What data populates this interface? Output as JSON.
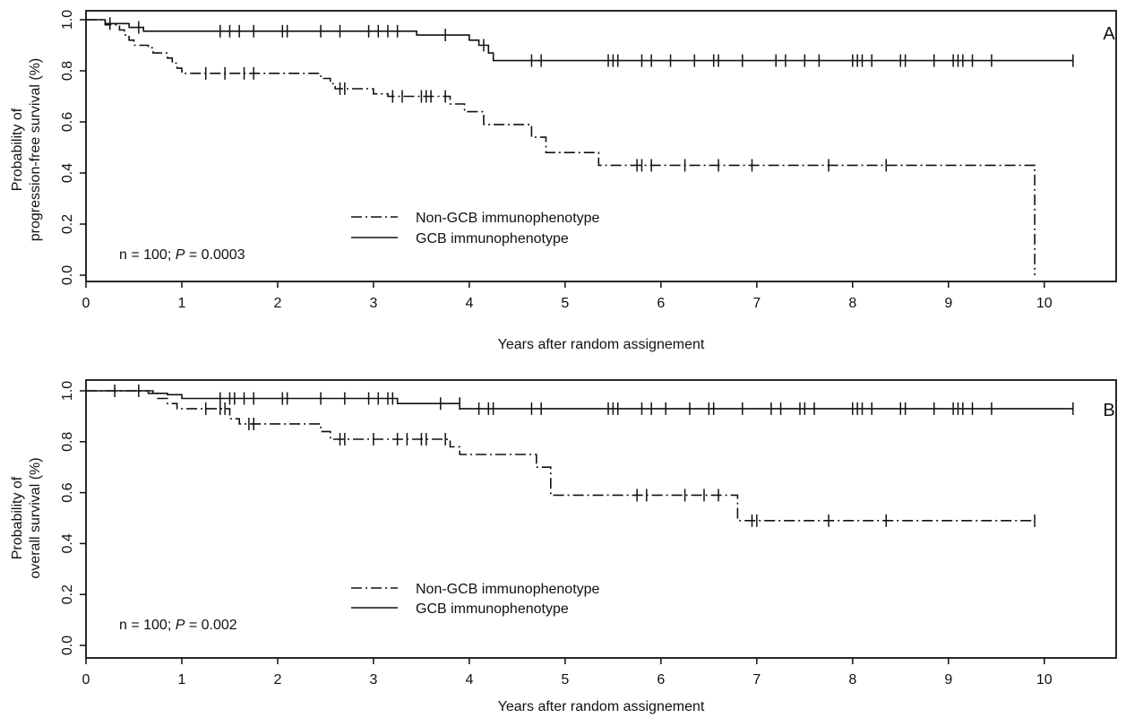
{
  "chart_data": [
    {
      "type": "line",
      "step": true,
      "panel_label": "A",
      "ylabel_line1": "Probability of",
      "ylabel_line2": "progression-free survival (%)",
      "xlabel": "Years after random assignement",
      "xlim": [
        0,
        10.75
      ],
      "ylim": [
        0,
        1.0
      ],
      "xticks": [
        "0",
        "1",
        "2",
        "3",
        "4",
        "5",
        "6",
        "7",
        "8",
        "9",
        "10"
      ],
      "yticks": [
        "0.0",
        "0.2",
        "0.4",
        "0.6",
        "0.8",
        "1.0"
      ],
      "annotation_text": "n = 100; ",
      "annotation_p_label": "P",
      "annotation_p_value": " = 0.0003",
      "legend": [
        {
          "label": "Non-GCB immunophenotype",
          "style": "dashdot"
        },
        {
          "label": "GCB immunophenotype",
          "style": "solid"
        }
      ],
      "series": [
        {
          "name": "Non-GCB immunophenotype",
          "style": "dashdot",
          "steps": [
            [
              0,
              1.0
            ],
            [
              0.2,
              0.98
            ],
            [
              0.35,
              0.96
            ],
            [
              0.4,
              0.94
            ],
            [
              0.45,
              0.92
            ],
            [
              0.5,
              0.9
            ],
            [
              0.65,
              0.89
            ],
            [
              0.7,
              0.87
            ],
            [
              0.85,
              0.85
            ],
            [
              0.9,
              0.83
            ],
            [
              0.95,
              0.81
            ],
            [
              1.0,
              0.79
            ],
            [
              2.45,
              0.77
            ],
            [
              2.55,
              0.75
            ],
            [
              2.6,
              0.73
            ],
            [
              3.0,
              0.71
            ],
            [
              3.15,
              0.7
            ],
            [
              3.8,
              0.67
            ],
            [
              3.95,
              0.64
            ],
            [
              4.15,
              0.59
            ],
            [
              4.65,
              0.54
            ],
            [
              4.8,
              0.48
            ],
            [
              5.35,
              0.43
            ],
            [
              9.9,
              0.0
            ]
          ],
          "end_x": 9.9,
          "censored": [
            [
              1.25,
              0.79
            ],
            [
              1.45,
              0.79
            ],
            [
              1.65,
              0.79
            ],
            [
              1.75,
              0.79
            ],
            [
              2.65,
              0.73
            ],
            [
              2.7,
              0.73
            ],
            [
              3.2,
              0.7
            ],
            [
              3.3,
              0.7
            ],
            [
              3.5,
              0.7
            ],
            [
              3.55,
              0.7
            ],
            [
              3.6,
              0.7
            ],
            [
              3.75,
              0.7
            ],
            [
              5.75,
              0.43
            ],
            [
              5.8,
              0.43
            ],
            [
              5.9,
              0.43
            ],
            [
              6.25,
              0.43
            ],
            [
              6.6,
              0.43
            ],
            [
              6.95,
              0.43
            ],
            [
              7.75,
              0.43
            ],
            [
              8.35,
              0.43
            ]
          ]
        },
        {
          "name": "GCB immunophenotype",
          "style": "solid",
          "steps": [
            [
              0,
              1.0
            ],
            [
              0.2,
              0.985
            ],
            [
              0.3,
              0.985
            ],
            [
              0.45,
              0.97
            ],
            [
              0.6,
              0.955
            ],
            [
              3.45,
              0.94
            ],
            [
              4.0,
              0.92
            ],
            [
              4.1,
              0.9
            ],
            [
              4.2,
              0.87
            ],
            [
              4.25,
              0.84
            ]
          ],
          "end_x": 10.3,
          "censored": [
            [
              0.25,
              0.985
            ],
            [
              0.55,
              0.97
            ],
            [
              1.4,
              0.955
            ],
            [
              1.5,
              0.955
            ],
            [
              1.6,
              0.955
            ],
            [
              1.75,
              0.955
            ],
            [
              2.05,
              0.955
            ],
            [
              2.1,
              0.955
            ],
            [
              2.45,
              0.955
            ],
            [
              2.65,
              0.955
            ],
            [
              2.95,
              0.955
            ],
            [
              3.05,
              0.955
            ],
            [
              3.15,
              0.955
            ],
            [
              3.25,
              0.955
            ],
            [
              3.75,
              0.94
            ],
            [
              4.15,
              0.9
            ],
            [
              4.65,
              0.84
            ],
            [
              4.75,
              0.84
            ],
            [
              5.45,
              0.84
            ],
            [
              5.5,
              0.84
            ],
            [
              5.55,
              0.84
            ],
            [
              5.8,
              0.84
            ],
            [
              5.9,
              0.84
            ],
            [
              6.1,
              0.84
            ],
            [
              6.35,
              0.84
            ],
            [
              6.55,
              0.84
            ],
            [
              6.6,
              0.84
            ],
            [
              6.85,
              0.84
            ],
            [
              7.2,
              0.84
            ],
            [
              7.3,
              0.84
            ],
            [
              7.5,
              0.84
            ],
            [
              7.65,
              0.84
            ],
            [
              8.0,
              0.84
            ],
            [
              8.05,
              0.84
            ],
            [
              8.1,
              0.84
            ],
            [
              8.2,
              0.84
            ],
            [
              8.5,
              0.84
            ],
            [
              8.55,
              0.84
            ],
            [
              8.85,
              0.84
            ],
            [
              9.05,
              0.84
            ],
            [
              9.1,
              0.84
            ],
            [
              9.15,
              0.84
            ],
            [
              9.25,
              0.84
            ],
            [
              9.45,
              0.84
            ],
            [
              10.3,
              0.84
            ]
          ]
        }
      ]
    },
    {
      "type": "line",
      "step": true,
      "panel_label": "B",
      "ylabel_line1": "Probability of",
      "ylabel_line2": "overall survival (%)",
      "xlabel": "Years after random assignement",
      "xlim": [
        0,
        10.75
      ],
      "ylim": [
        0,
        1.0
      ],
      "xticks": [
        "0",
        "1",
        "2",
        "3",
        "4",
        "5",
        "6",
        "7",
        "8",
        "9",
        "10"
      ],
      "yticks": [
        "0.0",
        "0.2",
        "0.4",
        "0.6",
        "0.8",
        "1.0"
      ],
      "annotation_text": "n = 100; ",
      "annotation_p_label": "P",
      "annotation_p_value": " = 0.002",
      "legend": [
        {
          "label": "Non-GCB immunophenotype",
          "style": "dashdot"
        },
        {
          "label": "GCB immunophenotype",
          "style": "solid"
        }
      ],
      "series": [
        {
          "name": "Non-GCB immunophenotype",
          "style": "dashdot",
          "steps": [
            [
              0,
              1.0
            ],
            [
              0.65,
              0.99
            ],
            [
              0.75,
              0.97
            ],
            [
              0.85,
              0.95
            ],
            [
              0.95,
              0.93
            ],
            [
              1.5,
              0.89
            ],
            [
              1.6,
              0.87
            ],
            [
              2.45,
              0.84
            ],
            [
              2.55,
              0.81
            ],
            [
              3.8,
              0.78
            ],
            [
              3.9,
              0.75
            ],
            [
              4.7,
              0.7
            ],
            [
              4.85,
              0.59
            ],
            [
              6.8,
              0.49
            ]
          ],
          "end_x": 9.9,
          "censored": [
            [
              0.55,
              1.0
            ],
            [
              1.25,
              0.93
            ],
            [
              1.4,
              0.93
            ],
            [
              1.45,
              0.93
            ],
            [
              1.7,
              0.87
            ],
            [
              1.75,
              0.87
            ],
            [
              2.65,
              0.81
            ],
            [
              2.7,
              0.81
            ],
            [
              3.0,
              0.81
            ],
            [
              3.25,
              0.81
            ],
            [
              3.35,
              0.81
            ],
            [
              3.5,
              0.81
            ],
            [
              3.55,
              0.81
            ],
            [
              3.75,
              0.81
            ],
            [
              5.75,
              0.59
            ],
            [
              5.85,
              0.59
            ],
            [
              6.25,
              0.59
            ],
            [
              6.45,
              0.59
            ],
            [
              6.6,
              0.59
            ],
            [
              6.95,
              0.49
            ],
            [
              7.0,
              0.49
            ],
            [
              7.75,
              0.49
            ],
            [
              8.35,
              0.49
            ],
            [
              9.9,
              0.49
            ]
          ]
        },
        {
          "name": "GCB immunophenotype",
          "style": "solid",
          "steps": [
            [
              0,
              1.0
            ],
            [
              0.7,
              0.99
            ],
            [
              0.85,
              0.985
            ],
            [
              1.0,
              0.97
            ],
            [
              3.25,
              0.95
            ],
            [
              3.9,
              0.93
            ]
          ],
          "end_x": 10.3,
          "censored": [
            [
              0.3,
              1.0
            ],
            [
              1.4,
              0.97
            ],
            [
              1.5,
              0.97
            ],
            [
              1.55,
              0.97
            ],
            [
              1.65,
              0.97
            ],
            [
              1.75,
              0.97
            ],
            [
              2.05,
              0.97
            ],
            [
              2.1,
              0.97
            ],
            [
              2.45,
              0.97
            ],
            [
              2.7,
              0.97
            ],
            [
              2.95,
              0.97
            ],
            [
              3.05,
              0.97
            ],
            [
              3.15,
              0.97
            ],
            [
              3.2,
              0.97
            ],
            [
              3.7,
              0.95
            ],
            [
              3.9,
              0.95
            ],
            [
              4.1,
              0.93
            ],
            [
              4.2,
              0.93
            ],
            [
              4.25,
              0.93
            ],
            [
              4.65,
              0.93
            ],
            [
              4.75,
              0.93
            ],
            [
              5.45,
              0.93
            ],
            [
              5.5,
              0.93
            ],
            [
              5.55,
              0.93
            ],
            [
              5.8,
              0.93
            ],
            [
              5.9,
              0.93
            ],
            [
              6.05,
              0.93
            ],
            [
              6.3,
              0.93
            ],
            [
              6.5,
              0.93
            ],
            [
              6.55,
              0.93
            ],
            [
              6.85,
              0.93
            ],
            [
              7.15,
              0.93
            ],
            [
              7.25,
              0.93
            ],
            [
              7.45,
              0.93
            ],
            [
              7.5,
              0.93
            ],
            [
              7.6,
              0.93
            ],
            [
              8.0,
              0.93
            ],
            [
              8.05,
              0.93
            ],
            [
              8.1,
              0.93
            ],
            [
              8.2,
              0.93
            ],
            [
              8.5,
              0.93
            ],
            [
              8.55,
              0.93
            ],
            [
              8.85,
              0.93
            ],
            [
              9.05,
              0.93
            ],
            [
              9.1,
              0.93
            ],
            [
              9.15,
              0.93
            ],
            [
              9.25,
              0.93
            ],
            [
              9.45,
              0.93
            ],
            [
              10.3,
              0.93
            ]
          ]
        }
      ]
    }
  ]
}
